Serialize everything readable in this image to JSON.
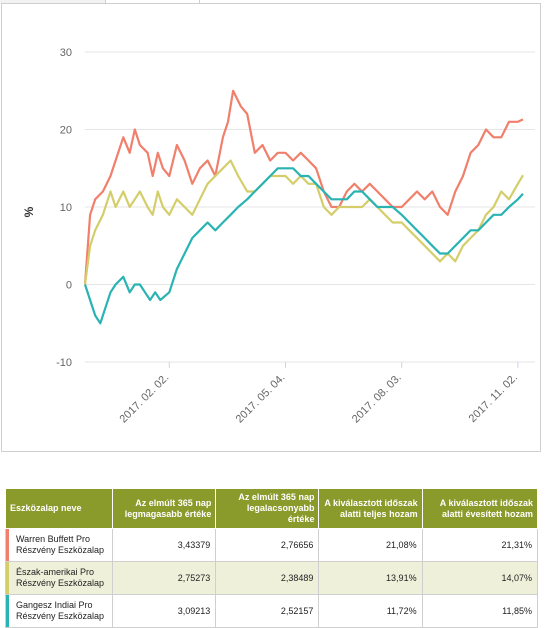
{
  "chart_data": {
    "type": "line",
    "ylabel": "%",
    "ylim": [
      -10,
      30
    ],
    "yticks": [
      -10,
      0,
      10,
      20,
      30
    ],
    "x_range": [
      "2016-11-28",
      "2017-11-06"
    ],
    "xticks": [
      {
        "date": "2017-02-02",
        "label": "2017. 02. 02."
      },
      {
        "date": "2017-05-04",
        "label": "2017. 05. 04."
      },
      {
        "date": "2017-08-03",
        "label": "2017. 08. 03."
      },
      {
        "date": "2017-11-02",
        "label": "2017. 11. 02."
      }
    ],
    "grid": true,
    "series": [
      {
        "name": "Warren Buffett Pro Részvény Eszközalap",
        "color": "#f07f6b",
        "points": [
          [
            "2016-11-28",
            0
          ],
          [
            "2016-12-02",
            9
          ],
          [
            "2016-12-06",
            11
          ],
          [
            "2016-12-12",
            12
          ],
          [
            "2016-12-18",
            14
          ],
          [
            "2016-12-22",
            16
          ],
          [
            "2016-12-28",
            19
          ],
          [
            "2017-01-02",
            17
          ],
          [
            "2017-01-06",
            20
          ],
          [
            "2017-01-10",
            18
          ],
          [
            "2017-01-16",
            17
          ],
          [
            "2017-01-20",
            14
          ],
          [
            "2017-01-24",
            17
          ],
          [
            "2017-01-28",
            15
          ],
          [
            "2017-02-02",
            14
          ],
          [
            "2017-02-08",
            18
          ],
          [
            "2017-02-14",
            16
          ],
          [
            "2017-02-20",
            13
          ],
          [
            "2017-02-26",
            15
          ],
          [
            "2017-03-04",
            16
          ],
          [
            "2017-03-10",
            14
          ],
          [
            "2017-03-16",
            19
          ],
          [
            "2017-03-20",
            21
          ],
          [
            "2017-03-24",
            25
          ],
          [
            "2017-03-30",
            23
          ],
          [
            "2017-04-04",
            22
          ],
          [
            "2017-04-10",
            17
          ],
          [
            "2017-04-16",
            18
          ],
          [
            "2017-04-22",
            16
          ],
          [
            "2017-04-28",
            17
          ],
          [
            "2017-05-04",
            17
          ],
          [
            "2017-05-10",
            16
          ],
          [
            "2017-05-16",
            17
          ],
          [
            "2017-05-22",
            16
          ],
          [
            "2017-05-28",
            15
          ],
          [
            "2017-06-03",
            12
          ],
          [
            "2017-06-09",
            10
          ],
          [
            "2017-06-15",
            10
          ],
          [
            "2017-06-21",
            12
          ],
          [
            "2017-06-27",
            13
          ],
          [
            "2017-07-03",
            12
          ],
          [
            "2017-07-09",
            13
          ],
          [
            "2017-07-15",
            12
          ],
          [
            "2017-07-21",
            11
          ],
          [
            "2017-07-27",
            10
          ],
          [
            "2017-08-03",
            10
          ],
          [
            "2017-08-09",
            11
          ],
          [
            "2017-08-15",
            12
          ],
          [
            "2017-08-21",
            11
          ],
          [
            "2017-08-27",
            12
          ],
          [
            "2017-09-02",
            10
          ],
          [
            "2017-09-08",
            9
          ],
          [
            "2017-09-14",
            12
          ],
          [
            "2017-09-20",
            14
          ],
          [
            "2017-09-26",
            17
          ],
          [
            "2017-10-02",
            18
          ],
          [
            "2017-10-08",
            20
          ],
          [
            "2017-10-14",
            19
          ],
          [
            "2017-10-20",
            19
          ],
          [
            "2017-10-26",
            21
          ],
          [
            "2017-11-02",
            21
          ],
          [
            "2017-11-06",
            21.3
          ]
        ]
      },
      {
        "name": "Észak-amerikai Pro Részvény Eszközalap",
        "color": "#d4ce6a",
        "points": [
          [
            "2016-11-28",
            0
          ],
          [
            "2016-12-02",
            5
          ],
          [
            "2016-12-06",
            7
          ],
          [
            "2016-12-12",
            9
          ],
          [
            "2016-12-18",
            12
          ],
          [
            "2016-12-22",
            10
          ],
          [
            "2016-12-28",
            12
          ],
          [
            "2017-01-02",
            10
          ],
          [
            "2017-01-06",
            11
          ],
          [
            "2017-01-10",
            12
          ],
          [
            "2017-01-16",
            10
          ],
          [
            "2017-01-20",
            9
          ],
          [
            "2017-01-24",
            12
          ],
          [
            "2017-01-28",
            10
          ],
          [
            "2017-02-02",
            9
          ],
          [
            "2017-02-08",
            11
          ],
          [
            "2017-02-14",
            10
          ],
          [
            "2017-02-20",
            9
          ],
          [
            "2017-02-26",
            11
          ],
          [
            "2017-03-04",
            13
          ],
          [
            "2017-03-10",
            14
          ],
          [
            "2017-03-16",
            15
          ],
          [
            "2017-03-22",
            16
          ],
          [
            "2017-03-28",
            14
          ],
          [
            "2017-04-04",
            12
          ],
          [
            "2017-04-10",
            12
          ],
          [
            "2017-04-16",
            13
          ],
          [
            "2017-04-22",
            14
          ],
          [
            "2017-04-28",
            14
          ],
          [
            "2017-05-04",
            14
          ],
          [
            "2017-05-10",
            13
          ],
          [
            "2017-05-16",
            14
          ],
          [
            "2017-05-22",
            13
          ],
          [
            "2017-05-28",
            13
          ],
          [
            "2017-06-03",
            10
          ],
          [
            "2017-06-09",
            9
          ],
          [
            "2017-06-15",
            10
          ],
          [
            "2017-06-21",
            10
          ],
          [
            "2017-06-27",
            10
          ],
          [
            "2017-07-03",
            10
          ],
          [
            "2017-07-09",
            11
          ],
          [
            "2017-07-15",
            10
          ],
          [
            "2017-07-21",
            9
          ],
          [
            "2017-07-27",
            8
          ],
          [
            "2017-08-03",
            8
          ],
          [
            "2017-08-09",
            7
          ],
          [
            "2017-08-15",
            6
          ],
          [
            "2017-08-21",
            5
          ],
          [
            "2017-08-27",
            4
          ],
          [
            "2017-09-02",
            3
          ],
          [
            "2017-09-08",
            4
          ],
          [
            "2017-09-14",
            3
          ],
          [
            "2017-09-20",
            5
          ],
          [
            "2017-09-26",
            6
          ],
          [
            "2017-10-02",
            7
          ],
          [
            "2017-10-08",
            9
          ],
          [
            "2017-10-14",
            10
          ],
          [
            "2017-10-20",
            12
          ],
          [
            "2017-10-26",
            11
          ],
          [
            "2017-11-02",
            13
          ],
          [
            "2017-11-06",
            14.1
          ]
        ]
      },
      {
        "name": "Gangesz Indiai Pro Részvény Eszközalap",
        "color": "#2ab3b3",
        "points": [
          [
            "2016-11-28",
            0
          ],
          [
            "2016-12-02",
            -2
          ],
          [
            "2016-12-06",
            -4
          ],
          [
            "2016-12-10",
            -5
          ],
          [
            "2016-12-14",
            -3
          ],
          [
            "2016-12-18",
            -1
          ],
          [
            "2016-12-22",
            0
          ],
          [
            "2016-12-28",
            1
          ],
          [
            "2017-01-02",
            -1
          ],
          [
            "2017-01-06",
            0
          ],
          [
            "2017-01-10",
            0
          ],
          [
            "2017-01-14",
            -1
          ],
          [
            "2017-01-18",
            -2
          ],
          [
            "2017-01-22",
            -1
          ],
          [
            "2017-01-26",
            -2
          ],
          [
            "2017-02-02",
            -1
          ],
          [
            "2017-02-08",
            2
          ],
          [
            "2017-02-14",
            4
          ],
          [
            "2017-02-20",
            6
          ],
          [
            "2017-02-26",
            7
          ],
          [
            "2017-03-04",
            8
          ],
          [
            "2017-03-10",
            7
          ],
          [
            "2017-03-16",
            8
          ],
          [
            "2017-03-22",
            9
          ],
          [
            "2017-03-28",
            10
          ],
          [
            "2017-04-04",
            11
          ],
          [
            "2017-04-10",
            12
          ],
          [
            "2017-04-16",
            13
          ],
          [
            "2017-04-22",
            14
          ],
          [
            "2017-04-28",
            15
          ],
          [
            "2017-05-04",
            15
          ],
          [
            "2017-05-10",
            15
          ],
          [
            "2017-05-16",
            14
          ],
          [
            "2017-05-22",
            14
          ],
          [
            "2017-05-28",
            13
          ],
          [
            "2017-06-03",
            12
          ],
          [
            "2017-06-09",
            11
          ],
          [
            "2017-06-15",
            11
          ],
          [
            "2017-06-21",
            11
          ],
          [
            "2017-06-27",
            12
          ],
          [
            "2017-07-03",
            12
          ],
          [
            "2017-07-09",
            11
          ],
          [
            "2017-07-15",
            10
          ],
          [
            "2017-07-21",
            10
          ],
          [
            "2017-07-27",
            10
          ],
          [
            "2017-08-03",
            9
          ],
          [
            "2017-08-09",
            8
          ],
          [
            "2017-08-15",
            7
          ],
          [
            "2017-08-21",
            6
          ],
          [
            "2017-08-27",
            5
          ],
          [
            "2017-09-02",
            4
          ],
          [
            "2017-09-08",
            4
          ],
          [
            "2017-09-14",
            5
          ],
          [
            "2017-09-20",
            6
          ],
          [
            "2017-09-26",
            7
          ],
          [
            "2017-10-02",
            7
          ],
          [
            "2017-10-08",
            8
          ],
          [
            "2017-10-14",
            9
          ],
          [
            "2017-10-20",
            9
          ],
          [
            "2017-10-26",
            10
          ],
          [
            "2017-11-02",
            11
          ],
          [
            "2017-11-06",
            11.7
          ]
        ]
      }
    ]
  },
  "table": {
    "headers": {
      "name": "Eszközalap neve",
      "max": [
        "Az elmúlt 365 nap",
        "legmagasabb értéke"
      ],
      "min": [
        "Az elmúlt 365 nap",
        "legalacsonyabb értéke"
      ],
      "total": [
        "A kiválasztott időszak",
        "alatti teljes hozam"
      ],
      "annual": [
        "A kiválasztott időszak",
        "alatti évesített hozam"
      ]
    },
    "rows": [
      {
        "name": [
          "Warren Buffett Pro",
          "Részvény Eszközalap"
        ],
        "color": "#f07f6b",
        "max": "3,43379",
        "min": "2,76656",
        "total": "21,08%",
        "annual": "21,31%"
      },
      {
        "name": [
          "Észak-amerikai Pro",
          "Részvény Eszközalap"
        ],
        "color": "#d4ce6a",
        "max": "2,75273",
        "min": "2,38489",
        "total": "13,91%",
        "annual": "14,07%"
      },
      {
        "name": [
          "Gangesz Indiai Pro",
          "Részvény Eszközalap"
        ],
        "color": "#2ab3b3",
        "max": "3,09213",
        "min": "2,52157",
        "total": "11,72%",
        "annual": "11,85%"
      }
    ]
  }
}
